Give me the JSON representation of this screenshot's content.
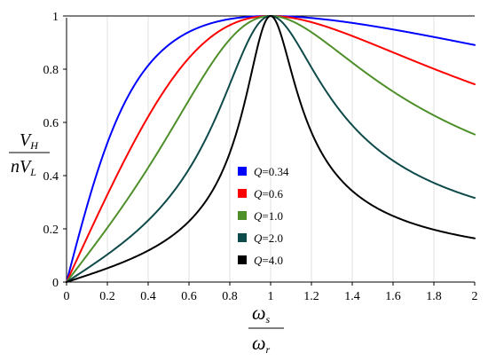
{
  "chart_data": {
    "type": "line",
    "title": "",
    "xlabel": {
      "numerator": "ω",
      "numerator_sub": "s",
      "denominator": "ω",
      "denominator_sub": "r"
    },
    "ylabel": {
      "numerator": "V",
      "numerator_sub": "H",
      "denominator": "nV",
      "denominator_sub": "L"
    },
    "xlim": [
      0,
      2
    ],
    "ylim": [
      0,
      1
    ],
    "xticks": [
      0,
      0.2,
      0.4,
      0.6,
      0.8,
      1,
      1.2,
      1.4,
      1.6,
      1.8,
      2
    ],
    "yticks": [
      0,
      0.2,
      0.4,
      0.6,
      0.8,
      1
    ],
    "xtick_labels": [
      "0",
      "0.2",
      "0.4",
      "0.6",
      "0.8",
      "1",
      "1.2",
      "1.4",
      "1.6",
      "1.8",
      "2"
    ],
    "ytick_labels": [
      "0",
      "0.2",
      "0.4",
      "0.6",
      "0.8",
      "1"
    ],
    "grid": "vertical",
    "legend_position": "lower-center",
    "series": [
      {
        "name": "Q=0.34",
        "q_symbol": "Q",
        "q_value": "=0.34",
        "Q": 0.34,
        "color": "#0000ff"
      },
      {
        "name": "Q=0.6",
        "q_symbol": "Q",
        "q_value": "=0.6",
        "Q": 0.6,
        "color": "#ff0000"
      },
      {
        "name": "Q=1.0",
        "q_symbol": "Q",
        "q_value": "=1.0",
        "Q": 1.0,
        "color": "#4e8f2a"
      },
      {
        "name": "Q=2.0",
        "q_symbol": "Q",
        "q_value": "=2.0",
        "Q": 2.0,
        "color": "#0f4a4a"
      },
      {
        "name": "Q=4.0",
        "q_symbol": "Q",
        "q_value": "=4.0",
        "Q": 4.0,
        "color": "#000000"
      }
    ]
  }
}
